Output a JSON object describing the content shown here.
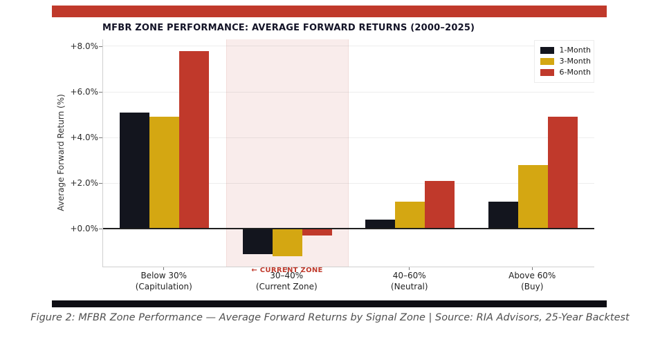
{
  "chart_data": {
    "type": "bar",
    "title": "MFBR ZONE PERFORMANCE: AVERAGE FORWARD RETURNS (2000–2025)",
    "xlabel": "",
    "ylabel": "Average Forward Return (%)",
    "categories": [
      [
        "Below 30%",
        "(Capitulation)"
      ],
      [
        "30–40%",
        "(Current Zone)"
      ],
      [
        "40–60%",
        "(Neutral)"
      ],
      [
        "Above 60%",
        "(Buy)"
      ]
    ],
    "series": [
      {
        "name": "1-Month",
        "color": "#13151e",
        "values": [
          5.1,
          -1.1,
          0.4,
          1.2
        ]
      },
      {
        "name": "3-Month",
        "color": "#d4a712",
        "values": [
          4.9,
          -1.2,
          1.2,
          2.8
        ]
      },
      {
        "name": "6-Month",
        "color": "#c0392b",
        "values": [
          7.8,
          -0.3,
          2.1,
          4.9
        ]
      }
    ],
    "yticks": [
      "+0.0%",
      "+2.0%",
      "+4.0%",
      "+6.0%",
      "+8.0%"
    ],
    "ytick_values": [
      0,
      2,
      4,
      6,
      8
    ],
    "ylim": [
      -1.65,
      8.3
    ],
    "grid": true,
    "legend_position": "upper right",
    "highlight": {
      "category_index": 1,
      "label": "← CURRENT ZONE",
      "color": "#f9eceb"
    }
  },
  "caption": {
    "text": "Figure 2: MFBR Zone Performance — Average Forward Returns by Signal Zone | Source: RIA Advisors, 25-Year Backtest"
  },
  "colors": {
    "banner_red": "#c0392b",
    "footer_black": "#0e0e14",
    "annotation_red": "#c0392b"
  }
}
